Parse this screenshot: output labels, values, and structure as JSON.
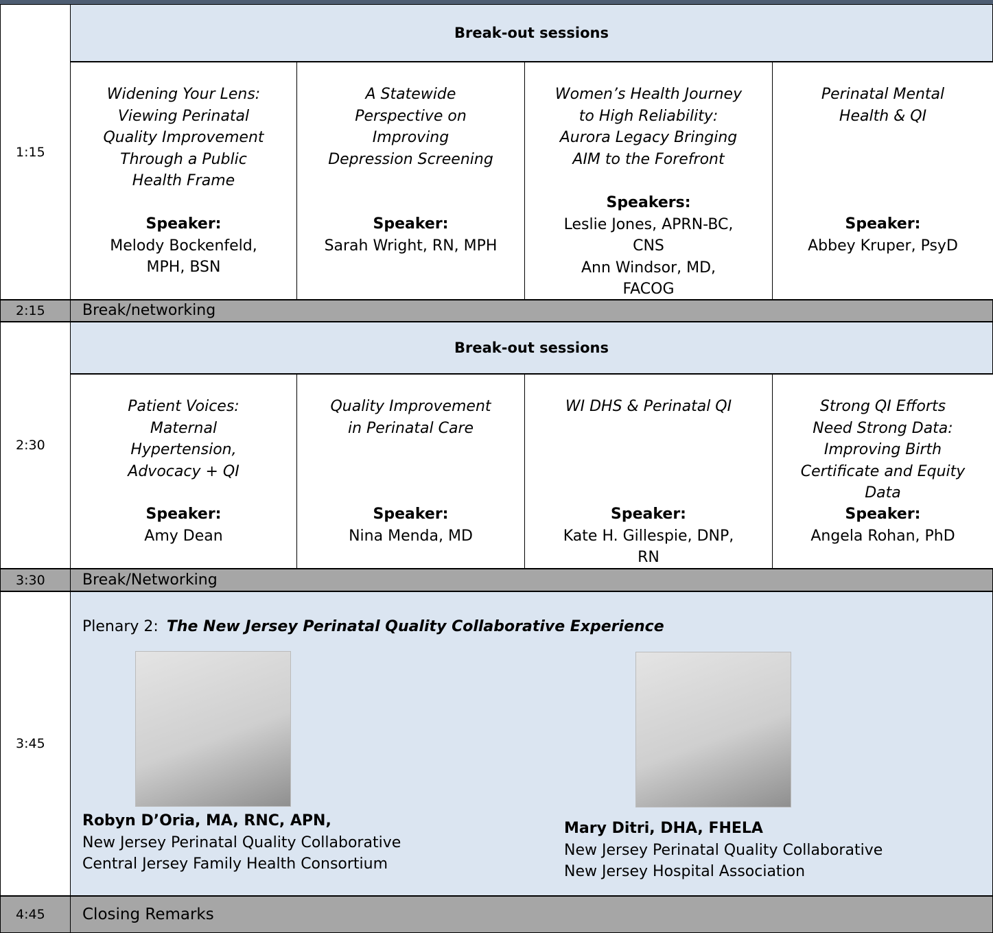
{
  "schedule": [
    {
      "time": "1:15",
      "header": "Break-out sessions",
      "sessions": [
        {
          "title": [
            "Widening Your Lens:",
            "Viewing Perinatal",
            "Quality Improvement",
            "Through a Public",
            "Health Frame"
          ],
          "speaker_label": "Speaker:",
          "speaker": [
            "Melody Bockenfeld,",
            "MPH, BSN"
          ]
        },
        {
          "title": [
            "A Statewide",
            "Perspective on",
            "Improving",
            "Depression Screening"
          ],
          "speaker_label": "Speaker:",
          "speaker": [
            "Sarah Wright, RN, MPH"
          ]
        },
        {
          "title": [
            "Women’s Health Journey",
            "to High Reliability:",
            "Aurora Legacy Bringing",
            "AIM to the Forefront"
          ],
          "speaker_label": "Speakers:",
          "speaker": [
            "Leslie Jones, APRN-BC,",
            "CNS",
            "Ann Windsor, MD,",
            "FACOG"
          ]
        },
        {
          "title": [
            "Perinatal Mental",
            "Health & QI"
          ],
          "speaker_label": "Speaker:",
          "speaker": [
            "Abbey Kruper, PsyD"
          ]
        }
      ]
    },
    {
      "time": "2:15",
      "label": "Break/networking"
    },
    {
      "time": "2:30",
      "header": "Break-out sessions",
      "sessions": [
        {
          "title": [
            "Patient Voices:",
            "Maternal",
            "Hypertension,",
            "Advocacy + QI"
          ],
          "speaker_label": "Speaker:",
          "speaker": [
            "Amy Dean"
          ]
        },
        {
          "title": [
            "Quality Improvement",
            "in Perinatal Care"
          ],
          "speaker_label": "Speaker:",
          "speaker": [
            "Nina Menda, MD"
          ]
        },
        {
          "title": [
            "WI DHS & Perinatal QI"
          ],
          "speaker_label": "Speaker:",
          "speaker": [
            "Kate H. Gillespie, DNP,",
            "RN"
          ]
        },
        {
          "title": [
            "Strong QI Efforts",
            "Need Strong Data:",
            "Improving Birth",
            "Certificate and Equity",
            "Data"
          ],
          "speaker_label": "Speaker:",
          "speaker": [
            "Angela Rohan, PhD"
          ]
        }
      ]
    },
    {
      "time": "3:30",
      "label": "Break/Networking"
    },
    {
      "time": "3:45",
      "plenary_prefix": "Plenary 2:",
      "plenary_title": "The New Jersey Perinatal Quality Collaborative Experience",
      "presenters": [
        {
          "name": "Robyn D’Oria, MA, RNC, APN,",
          "affiliations": [
            "New Jersey Perinatal Quality Collaborative",
            "Central Jersey Family Health Consortium"
          ]
        },
        {
          "name": "Mary Ditri, DHA, FHELA",
          "affiliations": [
            "New Jersey Perinatal Quality Collaborative",
            "New Jersey Hospital Association"
          ]
        }
      ]
    },
    {
      "time": "4:45",
      "label": "Closing Remarks"
    }
  ]
}
